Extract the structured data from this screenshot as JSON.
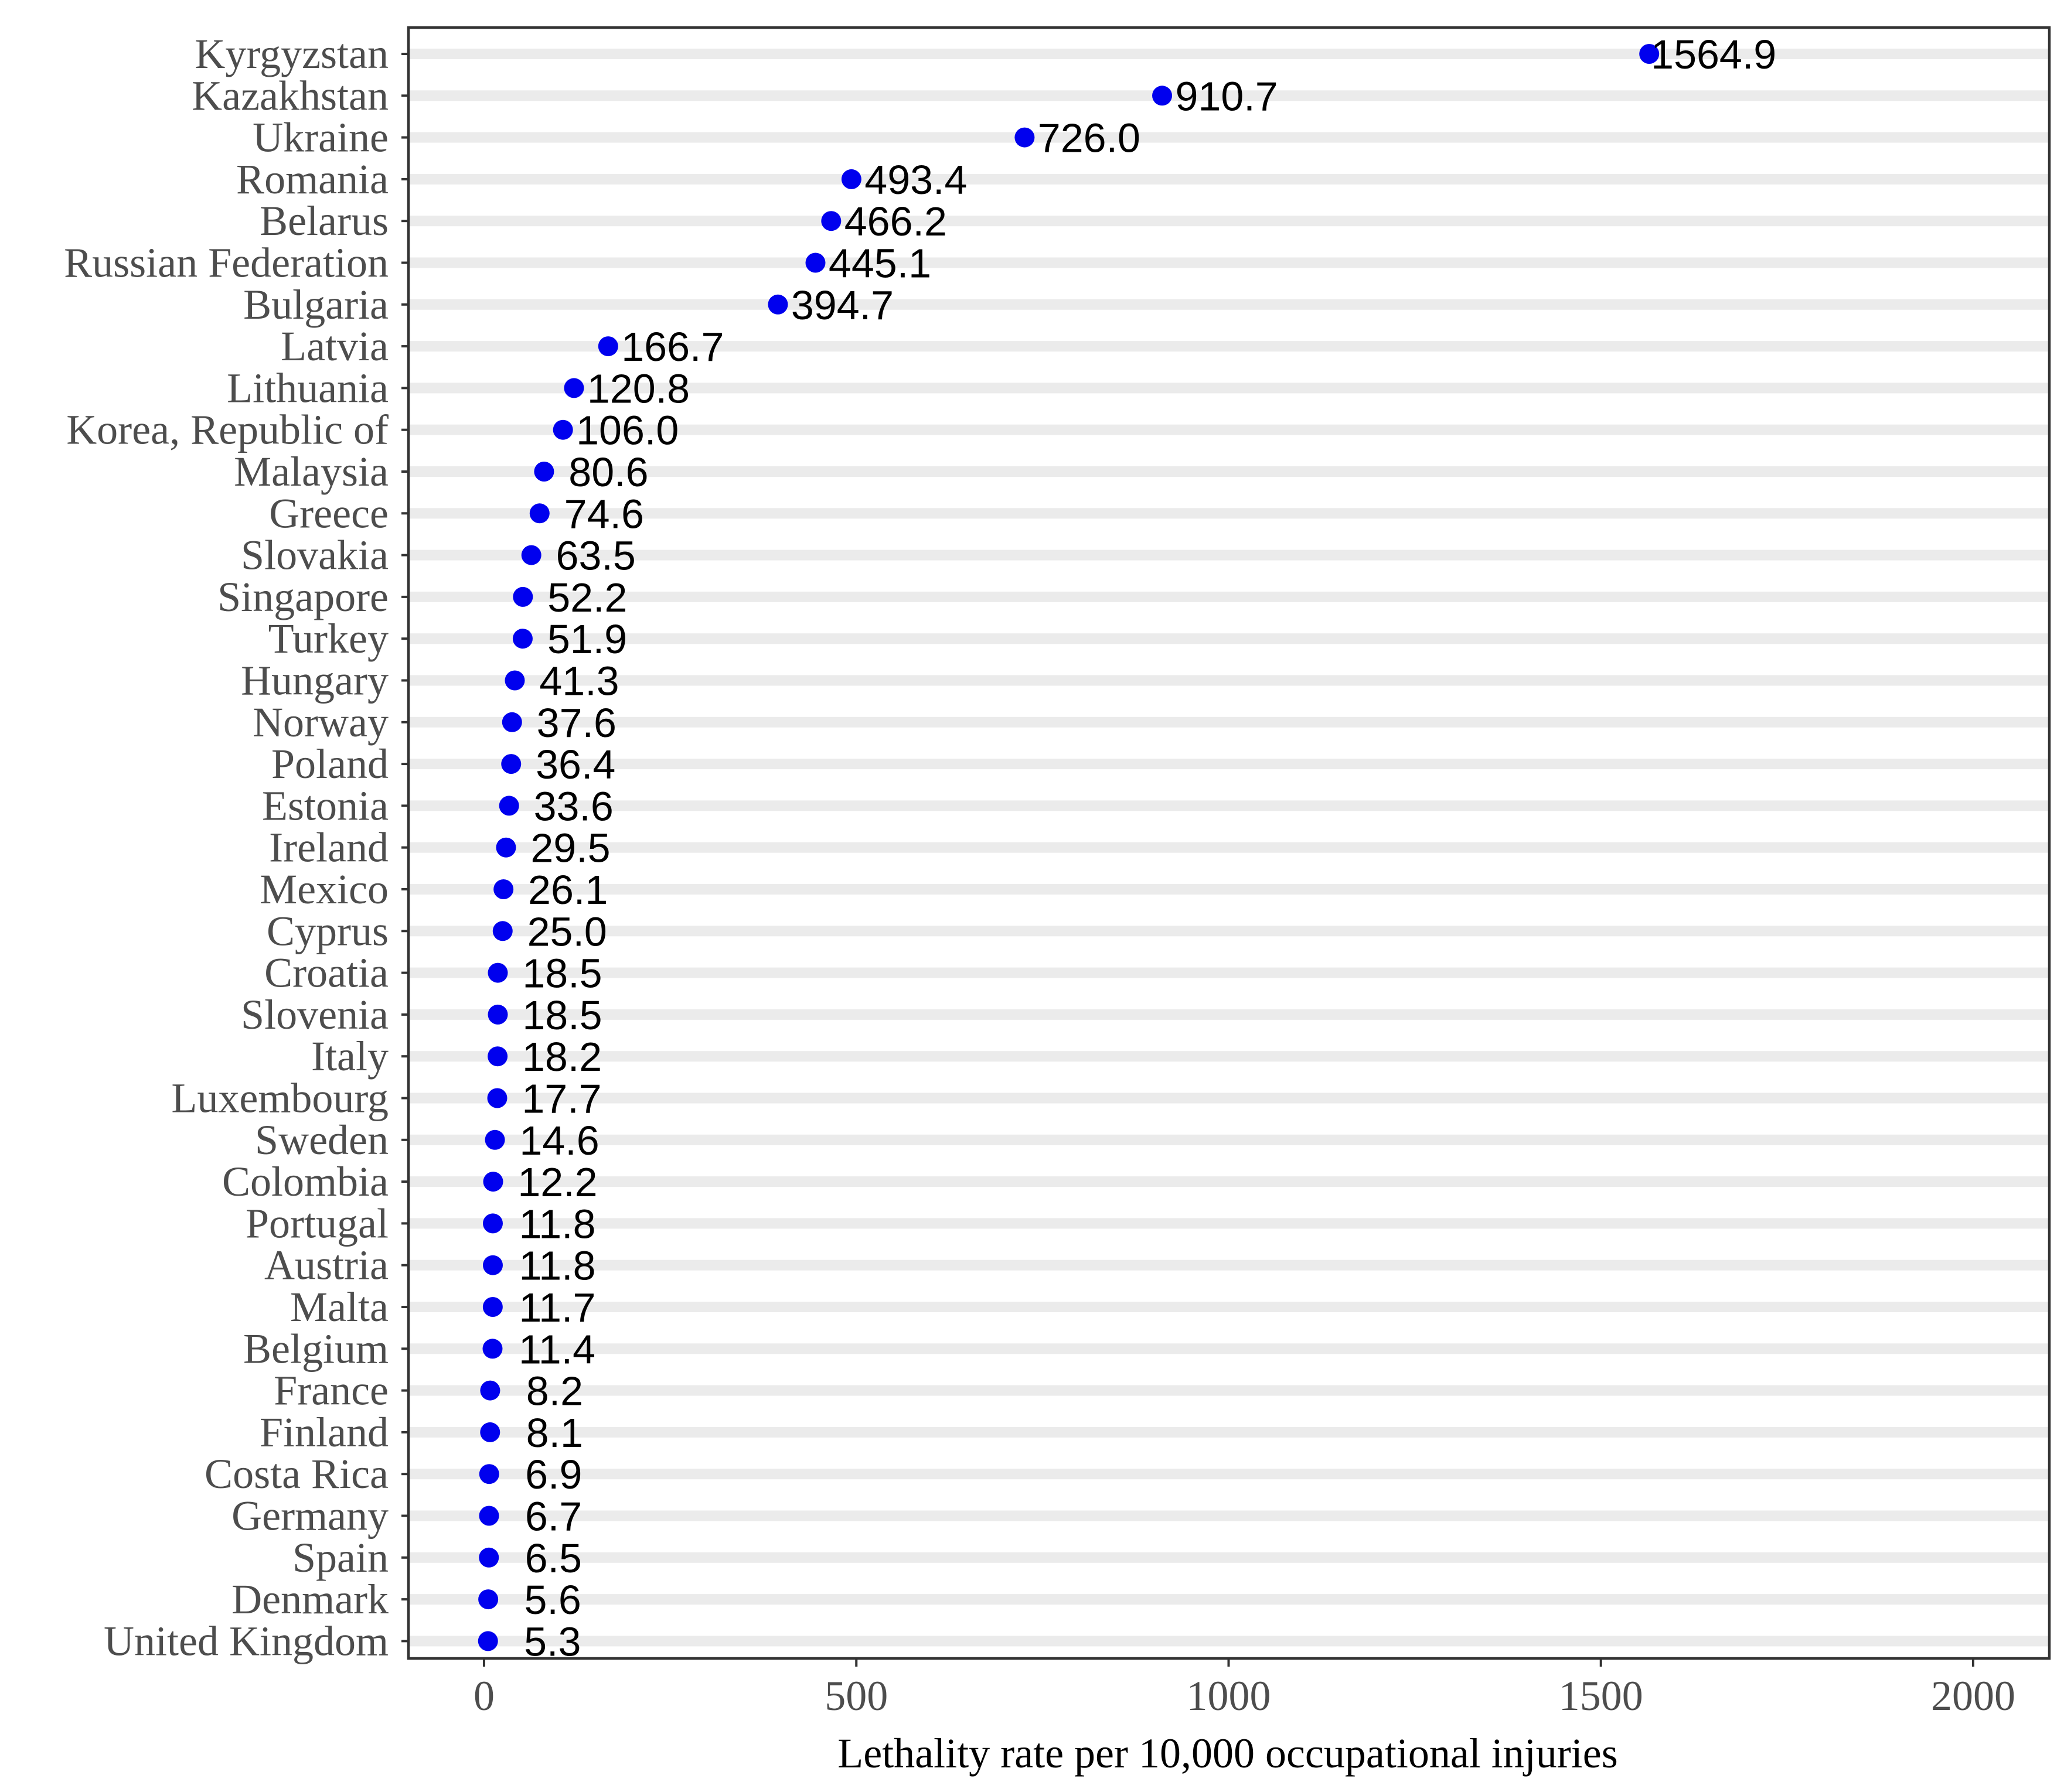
{
  "chart_data": {
    "type": "dot",
    "xlabel": "Lethality rate per 10,000 occupational injuries",
    "xlim": [
      -100,
      2100
    ],
    "xticks": [
      0,
      500,
      1000,
      1500,
      2000
    ],
    "xtick_labels": [
      "0",
      "500",
      "1000",
      "1500",
      "2000"
    ],
    "grid": "horizontal stripes",
    "point_color": "#0000ee",
    "stripe_color": "#ebebeb",
    "categories": [
      "Kyrgyzstan",
      "Kazakhstan",
      "Ukraine",
      "Romania",
      "Belarus",
      "Russian Federation",
      "Bulgaria",
      "Latvia",
      "Lithuania",
      "Korea, Republic of",
      "Malaysia",
      "Greece",
      "Slovakia",
      "Singapore",
      "Turkey",
      "Hungary",
      "Norway",
      "Poland",
      "Estonia",
      "Ireland",
      "Mexico",
      "Cyprus",
      "Croatia",
      "Slovenia",
      "Italy",
      "Luxembourg",
      "Sweden",
      "Colombia",
      "Portugal",
      "Austria",
      "Malta",
      "Belgium",
      "France",
      "Finland",
      "Costa Rica",
      "Germany",
      "Spain",
      "Denmark",
      "United Kingdom"
    ],
    "values": [
      1564.9,
      910.7,
      726.0,
      493.4,
      466.2,
      445.1,
      394.7,
      166.7,
      120.8,
      106.0,
      80.6,
      74.6,
      63.5,
      52.2,
      51.9,
      41.3,
      37.6,
      36.4,
      33.6,
      29.5,
      26.1,
      25.0,
      18.5,
      18.5,
      18.2,
      17.7,
      14.6,
      12.2,
      11.8,
      11.8,
      11.7,
      11.4,
      8.2,
      8.1,
      6.9,
      6.7,
      6.5,
      5.6,
      5.3
    ],
    "value_labels": [
      "1564.9",
      "910.7",
      "726.0",
      "493.4",
      "466.2",
      "445.1",
      "394.7",
      "166.7",
      "120.8",
      "106.0",
      "80.6",
      "74.6",
      "63.5",
      "52.2",
      "51.9",
      "41.3",
      "37.6",
      "36.4",
      "33.6",
      "29.5",
      "26.1",
      "25.0",
      "18.5",
      "18.5",
      "18.2",
      "17.7",
      "14.6",
      "12.2",
      "11.8",
      "11.8",
      "11.7",
      "11.4",
      "8.2",
      "8.1",
      "6.9",
      "6.7",
      "6.5",
      "5.6",
      "5.3"
    ]
  }
}
